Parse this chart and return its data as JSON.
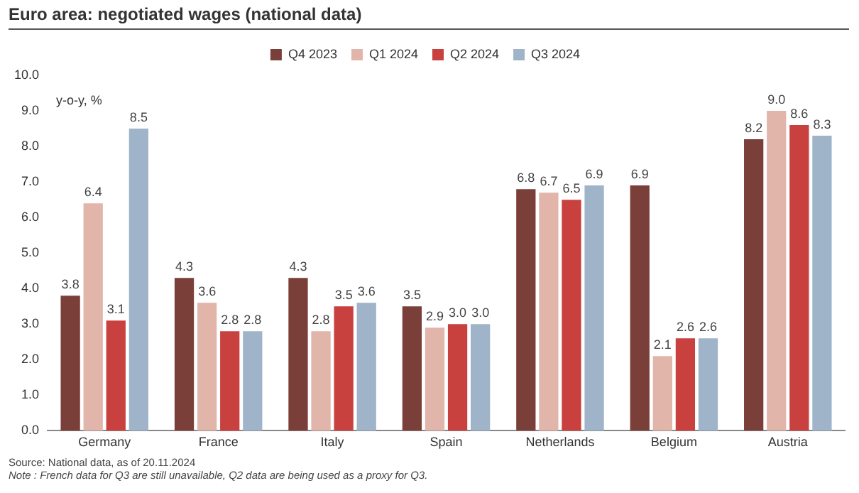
{
  "chart_data": {
    "type": "bar",
    "title": "Euro area: negotiated wages (national data)",
    "ylabel": "y-o-y, %",
    "categories": [
      "Germany",
      "France",
      "Italy",
      "Spain",
      "Netherlands",
      "Belgium",
      "Austria"
    ],
    "series": [
      {
        "name": "Q4 2023",
        "color": "#7b3f3a",
        "values": [
          3.8,
          4.3,
          4.3,
          3.5,
          6.8,
          6.9,
          8.2
        ],
        "value_labels": [
          "3.8",
          "4.3",
          "4.3",
          "3.5",
          "6.8",
          "6.9",
          "8.2"
        ]
      },
      {
        "name": "Q1 2024",
        "color": "#e2b5ab",
        "values": [
          6.4,
          3.6,
          2.8,
          2.9,
          6.7,
          2.1,
          9.0
        ],
        "value_labels": [
          "6.4",
          "3.6",
          "2.8",
          "2.9",
          "6.7",
          "2.1",
          "9.0"
        ]
      },
      {
        "name": "Q2 2024",
        "color": "#c8413f",
        "values": [
          3.1,
          2.8,
          3.5,
          3.0,
          6.5,
          2.6,
          8.6
        ],
        "value_labels": [
          "3.1",
          "2.8",
          "3.5",
          "3.0",
          "6.5",
          "2.6",
          "8.6"
        ]
      },
      {
        "name": "Q3 2024",
        "color": "#a0b4c9",
        "values": [
          8.5,
          2.8,
          3.6,
          3.0,
          6.9,
          2.6,
          8.3
        ],
        "value_labels": [
          "8.5",
          "2.8",
          "3.6",
          "3.0",
          "6.9",
          "2.6",
          "8.3"
        ]
      }
    ],
    "ylim": [
      0,
      10
    ],
    "yticks": [
      {
        "value": 0,
        "label": "0.0"
      },
      {
        "value": 1,
        "label": "1.0"
      },
      {
        "value": 2,
        "label": "2.0"
      },
      {
        "value": 3,
        "label": "3.0"
      },
      {
        "value": 4,
        "label": "4.0"
      },
      {
        "value": 5,
        "label": "5.0"
      },
      {
        "value": 6,
        "label": "6.0"
      },
      {
        "value": 7,
        "label": "7.0"
      },
      {
        "value": 8,
        "label": "8.0"
      },
      {
        "value": 9,
        "label": "9.0"
      },
      {
        "value": 10,
        "label": "10.0"
      }
    ],
    "legend": "top",
    "annotations": [
      "Source: National data, as of 20.11.2024",
      "Note : French data for Q3 are still unavailable, Q2 data are being used as a proxy for Q3."
    ]
  }
}
